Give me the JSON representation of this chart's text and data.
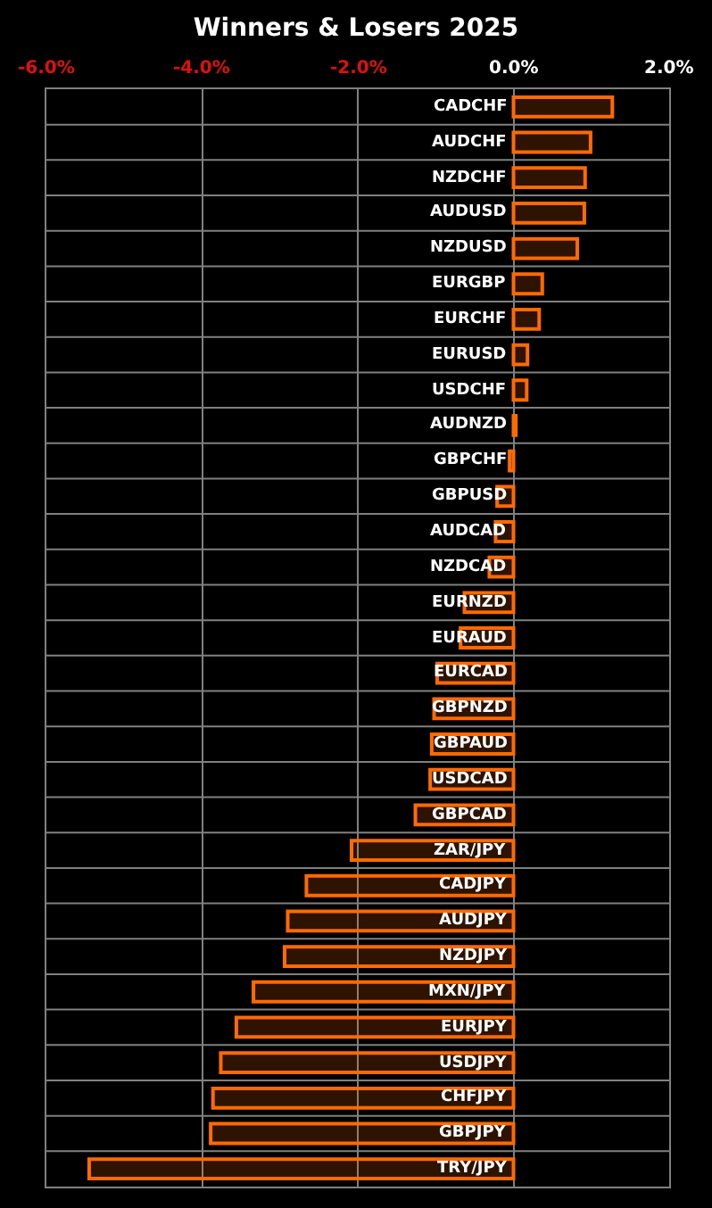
{
  "chart_data": {
    "type": "bar",
    "orientation": "horizontal",
    "title": "Winners & Losers 2025",
    "categories": [
      "CADCHF",
      "AUDCHF",
      "NZDCHF",
      "AUDUSD",
      "NZDUSD",
      "EURGBP",
      "EURCHF",
      "EURUSD",
      "USDCHF",
      "AUDNZD",
      "GBPCHF",
      "GBPUSD",
      "AUDCAD",
      "NZDCAD",
      "EURNZD",
      "EURAUD",
      "EURCAD",
      "GBPNZD",
      "GBPAUD",
      "USDCAD",
      "GBPCAD",
      "ZAR/JPY",
      "CADJPY",
      "AUDJPY",
      "NZDJPY",
      "MXN/JPY",
      "EURJPY",
      "USDJPY",
      "CHFJPY",
      "GBPJPY",
      "TRY/JPY"
    ],
    "values": [
      1.27,
      0.99,
      0.92,
      0.91,
      0.82,
      0.37,
      0.33,
      0.18,
      0.17,
      0.03,
      -0.05,
      -0.21,
      -0.23,
      -0.31,
      -0.63,
      -0.68,
      -0.98,
      -1.02,
      -1.05,
      -1.07,
      -1.26,
      -2.08,
      -2.66,
      -2.9,
      -2.94,
      -3.34,
      -3.56,
      -3.76,
      -3.86,
      -3.89,
      -5.45
    ],
    "color": "#ff6a00",
    "xlim": [
      -6,
      2
    ],
    "xticks": [
      {
        "value": -6,
        "label": "-6.0%"
      },
      {
        "value": -4,
        "label": "-4.0%"
      },
      {
        "value": -2,
        "label": "-2.0%"
      },
      {
        "value": 0,
        "label": "0.0%"
      },
      {
        "value": 2,
        "label": "2.0%"
      }
    ],
    "grid": true
  }
}
